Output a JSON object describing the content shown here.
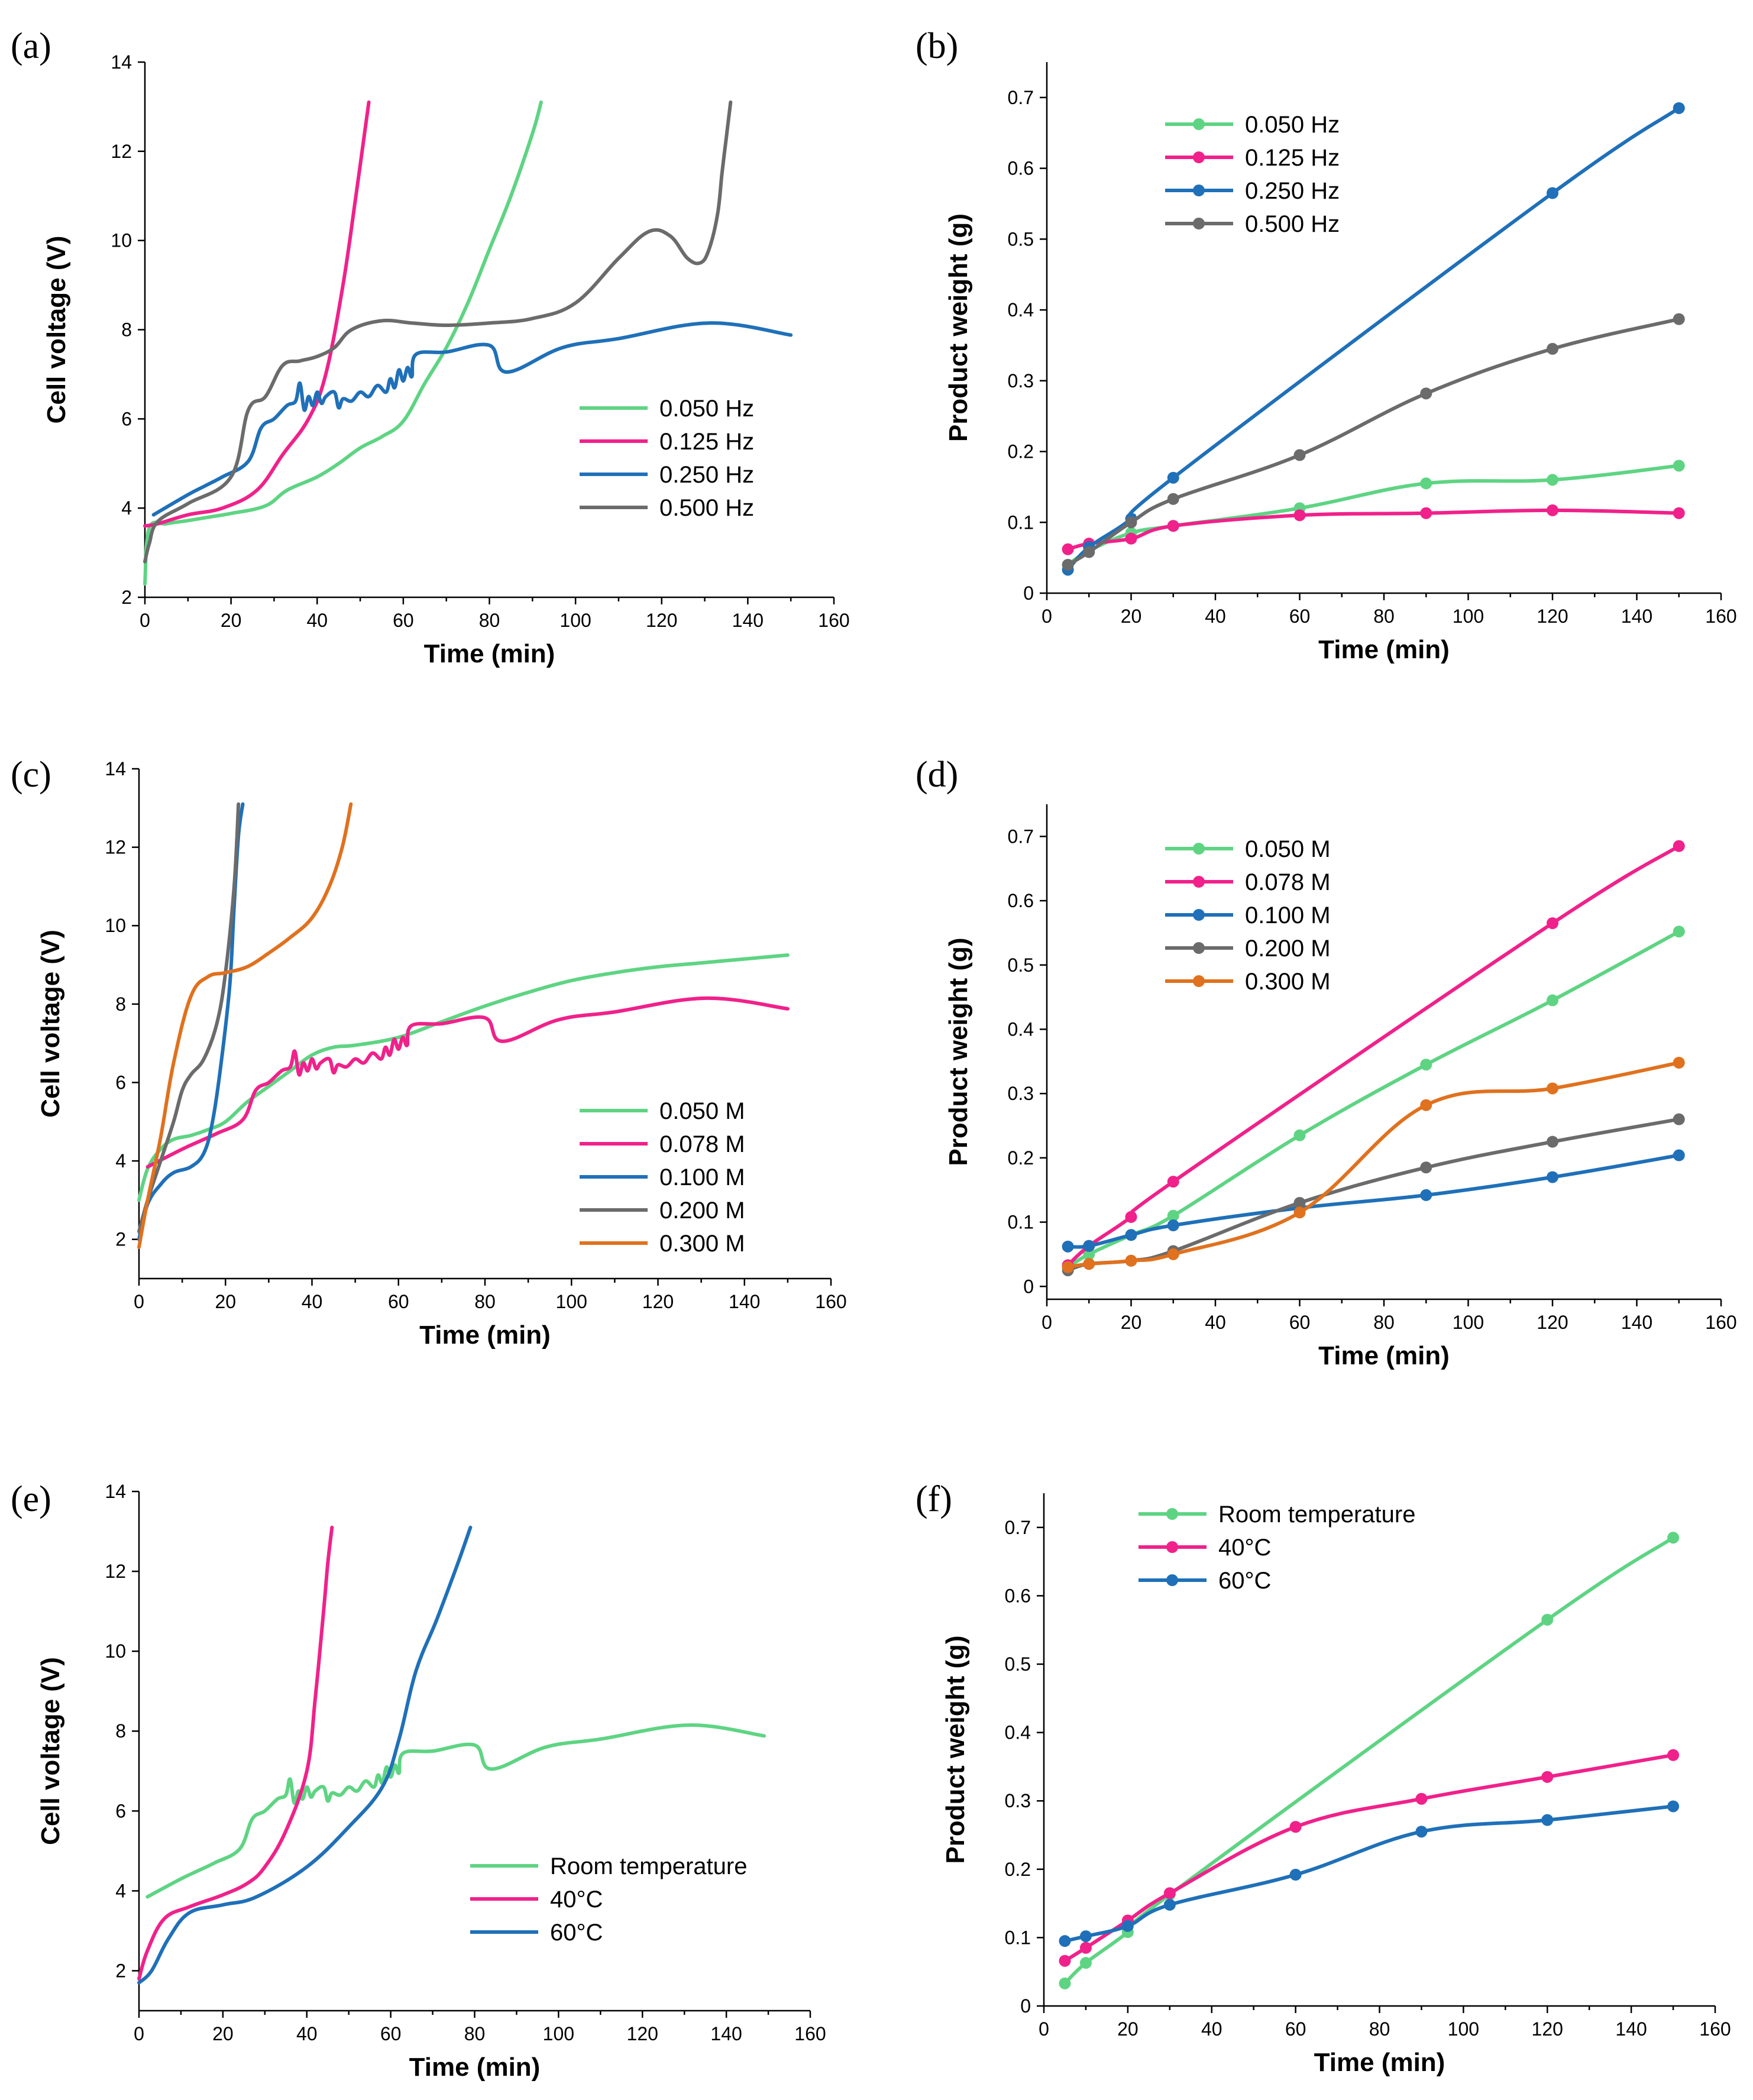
{
  "colors": {
    "green": "#5ed483",
    "pink": "#f0218a",
    "blue": "#1f70b8",
    "gray": "#6b6b6b",
    "orange": "#e0711e"
  },
  "chart_data": [
    {
      "id": "a",
      "panel_label": "(a)",
      "type": "line",
      "xlabel": "Time (min)",
      "ylabel": "Cell voltage (V)",
      "xlim": [
        0,
        160
      ],
      "ylim": [
        2,
        14
      ],
      "xticks": [
        0,
        20,
        40,
        60,
        80,
        100,
        120,
        140,
        160
      ],
      "yticks": [
        2,
        4,
        6,
        8,
        10,
        12,
        14
      ],
      "legend_position": "bottom-right",
      "series": [
        {
          "name": "0.050 Hz",
          "color": "#5ed483",
          "markers": false,
          "x": [
            0,
            1,
            5,
            10,
            15,
            20,
            28,
            33,
            40,
            45,
            50,
            55,
            60,
            65,
            70,
            75,
            80,
            85,
            90,
            92
          ],
          "y": [
            2.3,
            3.55,
            3.65,
            3.72,
            3.8,
            3.88,
            4.05,
            4.4,
            4.7,
            5.0,
            5.35,
            5.6,
            5.95,
            6.8,
            7.6,
            8.6,
            9.8,
            11.0,
            12.4,
            13.1
          ]
        },
        {
          "name": "0.125 Hz",
          "color": "#f0218a",
          "markers": false,
          "x": [
            0,
            3,
            10,
            18,
            26,
            32,
            38,
            42,
            46,
            49,
            52
          ],
          "y": [
            3.6,
            3.65,
            3.85,
            4.0,
            4.4,
            5.2,
            6.0,
            7.0,
            9.0,
            11.0,
            13.1
          ]
        },
        {
          "name": "0.250 Hz",
          "color": "#1f70b8",
          "markers": false,
          "x": [
            2,
            10,
            14,
            18,
            24,
            27,
            30,
            33,
            35,
            36,
            37,
            38,
            39,
            40,
            41,
            42,
            44,
            45,
            46,
            48,
            50,
            52,
            54,
            56,
            57,
            58,
            59,
            60,
            61,
            62,
            63,
            70,
            80,
            84,
            97,
            110,
            131,
            150
          ],
          "y": [
            3.85,
            4.3,
            4.5,
            4.7,
            5.05,
            5.8,
            6.0,
            6.3,
            6.4,
            6.8,
            6.2,
            6.5,
            6.3,
            6.6,
            6.35,
            6.5,
            6.6,
            6.25,
            6.45,
            6.4,
            6.6,
            6.5,
            6.75,
            6.6,
            6.9,
            6.7,
            7.1,
            6.85,
            7.15,
            6.95,
            7.45,
            7.5,
            7.65,
            7.05,
            7.6,
            7.8,
            8.15,
            7.88
          ]
        },
        {
          "name": "0.500 Hz",
          "color": "#6b6b6b",
          "markers": false,
          "x": [
            0,
            1,
            3,
            10,
            20,
            24,
            28,
            32,
            36,
            40,
            44,
            48,
            55,
            62,
            70,
            80,
            90,
            100,
            110,
            117,
            122,
            126,
            129,
            131,
            133,
            134,
            135,
            136
          ],
          "y": [
            2.8,
            3.2,
            3.7,
            4.1,
            4.7,
            6.2,
            6.5,
            7.2,
            7.3,
            7.4,
            7.6,
            8.0,
            8.2,
            8.15,
            8.1,
            8.15,
            8.25,
            8.6,
            9.6,
            10.2,
            10.1,
            9.6,
            9.5,
            9.8,
            10.6,
            11.5,
            12.3,
            13.1
          ]
        }
      ]
    },
    {
      "id": "b",
      "panel_label": "(b)",
      "type": "line",
      "xlabel": "Time (min)",
      "ylabel": "Product weight (g)",
      "xlim": [
        0,
        160
      ],
      "ylim": [
        0,
        0.75
      ],
      "xticks": [
        0,
        20,
        40,
        60,
        80,
        100,
        120,
        140,
        160
      ],
      "yticks": [
        0,
        0.1,
        0.2,
        0.3,
        0.4,
        0.5,
        0.6,
        0.7
      ],
      "legend_position": "top-left",
      "series": [
        {
          "name": "0.050 Hz",
          "color": "#5ed483",
          "markers": true,
          "x": [
            5,
            10,
            20,
            30,
            60,
            90,
            120,
            150
          ],
          "y": [
            0.04,
            0.06,
            0.085,
            0.095,
            0.12,
            0.155,
            0.16,
            0.18
          ]
        },
        {
          "name": "0.125 Hz",
          "color": "#f0218a",
          "markers": true,
          "x": [
            5,
            10,
            20,
            30,
            60,
            90,
            120,
            150
          ],
          "y": [
            0.062,
            0.07,
            0.077,
            0.095,
            0.11,
            0.113,
            0.117,
            0.113
          ]
        },
        {
          "name": "0.250 Hz",
          "color": "#1f70b8",
          "markers": true,
          "x": [
            5,
            10,
            20,
            30,
            120,
            150
          ],
          "y": [
            0.033,
            0.065,
            0.105,
            0.163,
            0.565,
            0.685
          ]
        },
        {
          "name": "0.500 Hz",
          "color": "#6b6b6b",
          "markers": true,
          "x": [
            5,
            10,
            20,
            30,
            60,
            90,
            120,
            150
          ],
          "y": [
            0.04,
            0.058,
            0.1,
            0.133,
            0.195,
            0.282,
            0.345,
            0.387
          ]
        }
      ]
    },
    {
      "id": "c",
      "panel_label": "(c)",
      "type": "line",
      "xlabel": "Time (min)",
      "ylabel": "Cell voltage (V)",
      "xlim": [
        0,
        160
      ],
      "ylim": [
        1,
        14
      ],
      "xticks": [
        0,
        20,
        40,
        60,
        80,
        100,
        120,
        140,
        160
      ],
      "yticks": [
        2,
        4,
        6,
        8,
        10,
        12,
        14
      ],
      "legend_position": "bottom-right",
      "series": [
        {
          "name": "0.050 M",
          "color": "#5ed483",
          "markers": false,
          "x": [
            0,
            2,
            5,
            8,
            12,
            16,
            20,
            25,
            30,
            35,
            40,
            45,
            50,
            60,
            70,
            80,
            90,
            100,
            110,
            120,
            130,
            140,
            150
          ],
          "y": [
            3.0,
            3.8,
            4.3,
            4.55,
            4.65,
            4.8,
            5.0,
            5.5,
            5.9,
            6.3,
            6.7,
            6.9,
            6.95,
            7.15,
            7.55,
            7.95,
            8.3,
            8.6,
            8.8,
            8.95,
            9.05,
            9.15,
            9.25
          ]
        },
        {
          "name": "0.078 M",
          "color": "#f0218a",
          "markers": false,
          "x": [
            2,
            10,
            14,
            18,
            24,
            27,
            30,
            33,
            35,
            36,
            37,
            38,
            39,
            40,
            41,
            42,
            44,
            45,
            46,
            48,
            50,
            52,
            54,
            56,
            57,
            58,
            59,
            60,
            61,
            62,
            63,
            70,
            80,
            84,
            97,
            110,
            131,
            150
          ],
          "y": [
            3.85,
            4.3,
            4.5,
            4.7,
            5.05,
            5.8,
            6.0,
            6.3,
            6.4,
            6.8,
            6.2,
            6.5,
            6.3,
            6.6,
            6.35,
            6.5,
            6.6,
            6.25,
            6.45,
            6.4,
            6.6,
            6.5,
            6.75,
            6.6,
            6.9,
            6.7,
            7.1,
            6.85,
            7.15,
            6.95,
            7.45,
            7.5,
            7.65,
            7.05,
            7.6,
            7.8,
            8.15,
            7.88
          ]
        },
        {
          "name": "0.100 M",
          "color": "#1f70b8",
          "markers": false,
          "x": [
            0,
            2,
            5,
            8,
            12,
            15,
            17,
            19,
            21,
            22,
            23,
            24
          ],
          "y": [
            2.0,
            2.9,
            3.4,
            3.7,
            3.85,
            4.2,
            5.0,
            6.5,
            8.5,
            10.5,
            12.3,
            13.1
          ]
        },
        {
          "name": "0.200 M",
          "color": "#6b6b6b",
          "markers": false,
          "x": [
            0,
            2,
            5,
            8,
            10,
            12,
            15,
            18,
            20,
            22,
            23
          ],
          "y": [
            2.2,
            3.0,
            4.0,
            5.0,
            5.8,
            6.2,
            6.6,
            7.5,
            8.8,
            11.0,
            13.1
          ]
        },
        {
          "name": "0.300 M",
          "color": "#e0711e",
          "markers": false,
          "x": [
            0,
            2,
            5,
            8,
            12,
            16,
            20,
            25,
            30,
            35,
            40,
            44,
            47,
            49
          ],
          "y": [
            1.8,
            3.0,
            4.6,
            6.5,
            8.2,
            8.7,
            8.8,
            8.95,
            9.3,
            9.7,
            10.2,
            11.0,
            12.0,
            13.1
          ]
        }
      ]
    },
    {
      "id": "d",
      "panel_label": "(d)",
      "type": "line",
      "xlabel": "Time (min)",
      "ylabel": "Product weight (g)",
      "xlim": [
        0,
        160
      ],
      "ylim": [
        -0.02,
        0.75
      ],
      "xticks": [
        0,
        20,
        40,
        60,
        80,
        100,
        120,
        140,
        160
      ],
      "yticks": [
        0,
        0.1,
        0.2,
        0.3,
        0.4,
        0.5,
        0.6,
        0.7
      ],
      "legend_position": "top-left",
      "series": [
        {
          "name": "0.050 M",
          "color": "#5ed483",
          "markers": true,
          "x": [
            5,
            10,
            20,
            30,
            60,
            90,
            120,
            150
          ],
          "y": [
            0.03,
            0.05,
            0.08,
            0.11,
            0.235,
            0.345,
            0.445,
            0.552
          ]
        },
        {
          "name": "0.078 M",
          "color": "#f0218a",
          "markers": true,
          "x": [
            5,
            10,
            20,
            30,
            120,
            150
          ],
          "y": [
            0.033,
            0.063,
            0.108,
            0.163,
            0.565,
            0.685
          ]
        },
        {
          "name": "0.100 M",
          "color": "#1f70b8",
          "markers": true,
          "x": [
            5,
            10,
            20,
            30,
            60,
            90,
            120,
            150
          ],
          "y": [
            0.062,
            0.063,
            0.08,
            0.095,
            0.122,
            0.142,
            0.17,
            0.204
          ]
        },
        {
          "name": "0.200 M",
          "color": "#6b6b6b",
          "markers": true,
          "x": [
            5,
            10,
            20,
            30,
            60,
            90,
            120,
            150
          ],
          "y": [
            0.025,
            0.035,
            0.04,
            0.055,
            0.13,
            0.185,
            0.225,
            0.26
          ]
        },
        {
          "name": "0.300 M",
          "color": "#e0711e",
          "markers": true,
          "x": [
            5,
            10,
            20,
            30,
            60,
            90,
            120,
            150
          ],
          "y": [
            0.03,
            0.035,
            0.04,
            0.05,
            0.115,
            0.282,
            0.308,
            0.348
          ]
        }
      ]
    },
    {
      "id": "e",
      "panel_label": "(e)",
      "type": "line",
      "xlabel": "Time (min)",
      "ylabel": "Cell voltage (V)",
      "xlim": [
        0,
        160
      ],
      "ylim": [
        1,
        14
      ],
      "xticks": [
        0,
        20,
        40,
        60,
        80,
        100,
        120,
        140,
        160
      ],
      "yticks": [
        2,
        4,
        6,
        8,
        10,
        12,
        14
      ],
      "legend_position": "bottom-right",
      "series": [
        {
          "name": "Room temperature",
          "color": "#5ed483",
          "markers": false,
          "x": [
            2,
            10,
            14,
            18,
            24,
            27,
            30,
            33,
            35,
            36,
            37,
            38,
            39,
            40,
            41,
            42,
            44,
            45,
            46,
            48,
            50,
            52,
            54,
            56,
            57,
            58,
            59,
            60,
            61,
            62,
            63,
            70,
            80,
            84,
            97,
            110,
            131,
            149
          ],
          "y": [
            3.85,
            4.3,
            4.5,
            4.7,
            5.05,
            5.8,
            6.0,
            6.3,
            6.4,
            6.8,
            6.2,
            6.5,
            6.3,
            6.6,
            6.35,
            6.5,
            6.6,
            6.25,
            6.45,
            6.4,
            6.6,
            6.5,
            6.75,
            6.6,
            6.9,
            6.7,
            7.1,
            6.85,
            7.15,
            6.95,
            7.45,
            7.5,
            7.65,
            7.05,
            7.6,
            7.8,
            8.15,
            7.88
          ]
        },
        {
          "name": "40°C",
          "color": "#f0218a",
          "markers": false,
          "x": [
            0,
            2,
            6,
            12,
            20,
            26,
            30,
            35,
            40,
            42,
            44,
            45,
            46
          ],
          "y": [
            1.8,
            2.5,
            3.3,
            3.6,
            3.9,
            4.2,
            4.6,
            5.5,
            7.0,
            8.8,
            11.0,
            12.2,
            13.1
          ]
        },
        {
          "name": "60°C",
          "color": "#1f70b8",
          "markers": false,
          "x": [
            0,
            3,
            7,
            12,
            20,
            28,
            40,
            50,
            58,
            62,
            66,
            71,
            76,
            79
          ],
          "y": [
            1.7,
            2.0,
            2.8,
            3.45,
            3.65,
            3.85,
            4.6,
            5.6,
            6.6,
            7.8,
            9.5,
            10.8,
            12.2,
            13.1
          ]
        }
      ]
    },
    {
      "id": "f",
      "panel_label": "(f)",
      "type": "line",
      "xlabel": "Time (min)",
      "ylabel": "Product weight (g)",
      "xlim": [
        0,
        160
      ],
      "ylim": [
        0,
        0.75
      ],
      "xticks": [
        0,
        20,
        40,
        60,
        80,
        100,
        120,
        140,
        160
      ],
      "yticks": [
        0,
        0.1,
        0.2,
        0.3,
        0.4,
        0.5,
        0.6,
        0.7
      ],
      "legend_position": "top-left",
      "series": [
        {
          "name": "Room temperature",
          "color": "#5ed483",
          "markers": true,
          "x": [
            5,
            10,
            20,
            30,
            120,
            150
          ],
          "y": [
            0.033,
            0.063,
            0.108,
            0.163,
            0.565,
            0.685
          ]
        },
        {
          "name": "40°C",
          "color": "#f0218a",
          "markers": true,
          "x": [
            5,
            10,
            20,
            30,
            60,
            90,
            120,
            150
          ],
          "y": [
            0.066,
            0.085,
            0.125,
            0.165,
            0.262,
            0.303,
            0.335,
            0.367
          ]
        },
        {
          "name": "60°C",
          "color": "#1f70b8",
          "markers": true,
          "x": [
            5,
            10,
            20,
            30,
            60,
            90,
            120,
            150
          ],
          "y": [
            0.095,
            0.102,
            0.117,
            0.148,
            0.192,
            0.255,
            0.272,
            0.292
          ]
        }
      ]
    }
  ]
}
